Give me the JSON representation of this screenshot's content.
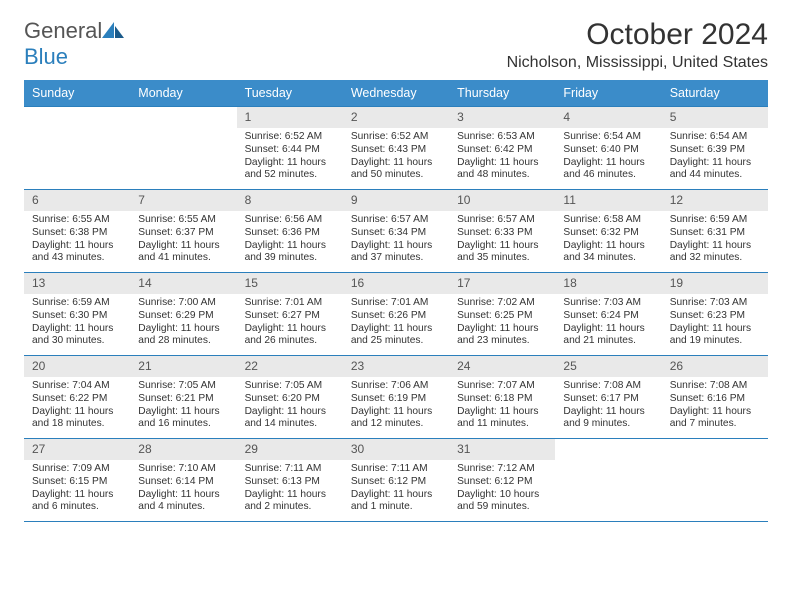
{
  "branding": {
    "logo_text_1": "General",
    "logo_text_2": "Blue",
    "logo_color_gray": "#6a6a6a",
    "logo_color_blue": "#2b7fbc"
  },
  "header": {
    "title": "October 2024",
    "location": "Nicholson, Mississippi, United States"
  },
  "styling": {
    "header_bg": "#3b8cc9",
    "header_fg": "#ffffff",
    "daynum_bg": "#e9e9e9",
    "border_color": "#2b7fbc",
    "body_font_size": 10.2,
    "title_font_size": 30,
    "location_font_size": 16,
    "dayhdr_font_size": 12.5
  },
  "day_headers": [
    "Sunday",
    "Monday",
    "Tuesday",
    "Wednesday",
    "Thursday",
    "Friday",
    "Saturday"
  ],
  "weeks": [
    [
      {
        "empty": true
      },
      {
        "empty": true
      },
      {
        "num": "1",
        "sunrise": "Sunrise: 6:52 AM",
        "sunset": "Sunset: 6:44 PM",
        "daylight": "Daylight: 11 hours and 52 minutes."
      },
      {
        "num": "2",
        "sunrise": "Sunrise: 6:52 AM",
        "sunset": "Sunset: 6:43 PM",
        "daylight": "Daylight: 11 hours and 50 minutes."
      },
      {
        "num": "3",
        "sunrise": "Sunrise: 6:53 AM",
        "sunset": "Sunset: 6:42 PM",
        "daylight": "Daylight: 11 hours and 48 minutes."
      },
      {
        "num": "4",
        "sunrise": "Sunrise: 6:54 AM",
        "sunset": "Sunset: 6:40 PM",
        "daylight": "Daylight: 11 hours and 46 minutes."
      },
      {
        "num": "5",
        "sunrise": "Sunrise: 6:54 AM",
        "sunset": "Sunset: 6:39 PM",
        "daylight": "Daylight: 11 hours and 44 minutes."
      }
    ],
    [
      {
        "num": "6",
        "sunrise": "Sunrise: 6:55 AM",
        "sunset": "Sunset: 6:38 PM",
        "daylight": "Daylight: 11 hours and 43 minutes."
      },
      {
        "num": "7",
        "sunrise": "Sunrise: 6:55 AM",
        "sunset": "Sunset: 6:37 PM",
        "daylight": "Daylight: 11 hours and 41 minutes."
      },
      {
        "num": "8",
        "sunrise": "Sunrise: 6:56 AM",
        "sunset": "Sunset: 6:36 PM",
        "daylight": "Daylight: 11 hours and 39 minutes."
      },
      {
        "num": "9",
        "sunrise": "Sunrise: 6:57 AM",
        "sunset": "Sunset: 6:34 PM",
        "daylight": "Daylight: 11 hours and 37 minutes."
      },
      {
        "num": "10",
        "sunrise": "Sunrise: 6:57 AM",
        "sunset": "Sunset: 6:33 PM",
        "daylight": "Daylight: 11 hours and 35 minutes."
      },
      {
        "num": "11",
        "sunrise": "Sunrise: 6:58 AM",
        "sunset": "Sunset: 6:32 PM",
        "daylight": "Daylight: 11 hours and 34 minutes."
      },
      {
        "num": "12",
        "sunrise": "Sunrise: 6:59 AM",
        "sunset": "Sunset: 6:31 PM",
        "daylight": "Daylight: 11 hours and 32 minutes."
      }
    ],
    [
      {
        "num": "13",
        "sunrise": "Sunrise: 6:59 AM",
        "sunset": "Sunset: 6:30 PM",
        "daylight": "Daylight: 11 hours and 30 minutes."
      },
      {
        "num": "14",
        "sunrise": "Sunrise: 7:00 AM",
        "sunset": "Sunset: 6:29 PM",
        "daylight": "Daylight: 11 hours and 28 minutes."
      },
      {
        "num": "15",
        "sunrise": "Sunrise: 7:01 AM",
        "sunset": "Sunset: 6:27 PM",
        "daylight": "Daylight: 11 hours and 26 minutes."
      },
      {
        "num": "16",
        "sunrise": "Sunrise: 7:01 AM",
        "sunset": "Sunset: 6:26 PM",
        "daylight": "Daylight: 11 hours and 25 minutes."
      },
      {
        "num": "17",
        "sunrise": "Sunrise: 7:02 AM",
        "sunset": "Sunset: 6:25 PM",
        "daylight": "Daylight: 11 hours and 23 minutes."
      },
      {
        "num": "18",
        "sunrise": "Sunrise: 7:03 AM",
        "sunset": "Sunset: 6:24 PM",
        "daylight": "Daylight: 11 hours and 21 minutes."
      },
      {
        "num": "19",
        "sunrise": "Sunrise: 7:03 AM",
        "sunset": "Sunset: 6:23 PM",
        "daylight": "Daylight: 11 hours and 19 minutes."
      }
    ],
    [
      {
        "num": "20",
        "sunrise": "Sunrise: 7:04 AM",
        "sunset": "Sunset: 6:22 PM",
        "daylight": "Daylight: 11 hours and 18 minutes."
      },
      {
        "num": "21",
        "sunrise": "Sunrise: 7:05 AM",
        "sunset": "Sunset: 6:21 PM",
        "daylight": "Daylight: 11 hours and 16 minutes."
      },
      {
        "num": "22",
        "sunrise": "Sunrise: 7:05 AM",
        "sunset": "Sunset: 6:20 PM",
        "daylight": "Daylight: 11 hours and 14 minutes."
      },
      {
        "num": "23",
        "sunrise": "Sunrise: 7:06 AM",
        "sunset": "Sunset: 6:19 PM",
        "daylight": "Daylight: 11 hours and 12 minutes."
      },
      {
        "num": "24",
        "sunrise": "Sunrise: 7:07 AM",
        "sunset": "Sunset: 6:18 PM",
        "daylight": "Daylight: 11 hours and 11 minutes."
      },
      {
        "num": "25",
        "sunrise": "Sunrise: 7:08 AM",
        "sunset": "Sunset: 6:17 PM",
        "daylight": "Daylight: 11 hours and 9 minutes."
      },
      {
        "num": "26",
        "sunrise": "Sunrise: 7:08 AM",
        "sunset": "Sunset: 6:16 PM",
        "daylight": "Daylight: 11 hours and 7 minutes."
      }
    ],
    [
      {
        "num": "27",
        "sunrise": "Sunrise: 7:09 AM",
        "sunset": "Sunset: 6:15 PM",
        "daylight": "Daylight: 11 hours and 6 minutes."
      },
      {
        "num": "28",
        "sunrise": "Sunrise: 7:10 AM",
        "sunset": "Sunset: 6:14 PM",
        "daylight": "Daylight: 11 hours and 4 minutes."
      },
      {
        "num": "29",
        "sunrise": "Sunrise: 7:11 AM",
        "sunset": "Sunset: 6:13 PM",
        "daylight": "Daylight: 11 hours and 2 minutes."
      },
      {
        "num": "30",
        "sunrise": "Sunrise: 7:11 AM",
        "sunset": "Sunset: 6:12 PM",
        "daylight": "Daylight: 11 hours and 1 minute."
      },
      {
        "num": "31",
        "sunrise": "Sunrise: 7:12 AM",
        "sunset": "Sunset: 6:12 PM",
        "daylight": "Daylight: 10 hours and 59 minutes."
      },
      {
        "empty": true
      },
      {
        "empty": true
      }
    ]
  ]
}
